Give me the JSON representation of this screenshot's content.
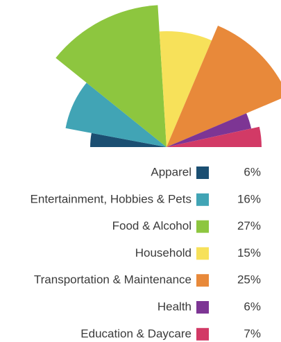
{
  "chart_data": {
    "type": "polar-area",
    "categories": [
      "Apparel",
      "Entertainment, Hobbies & Pets",
      "Food & Alcohol",
      "Household",
      "Transportation & Maintenance",
      "Health",
      "Education & Daycare"
    ],
    "values": [
      6,
      16,
      27,
      15,
      25,
      6,
      7
    ],
    "value_labels": [
      "6%",
      "16%",
      "27%",
      "15%",
      "25%",
      "6%",
      "7%"
    ],
    "radii": [
      110,
      148,
      205,
      167,
      190,
      125,
      137
    ],
    "rlim": [
      0,
      210
    ],
    "colors": [
      "#1b4f72",
      "#41a4b5",
      "#8dc63f",
      "#f7e15a",
      "#e8893a",
      "#7d3594",
      "#d23a66"
    ],
    "legend": "bottom"
  }
}
